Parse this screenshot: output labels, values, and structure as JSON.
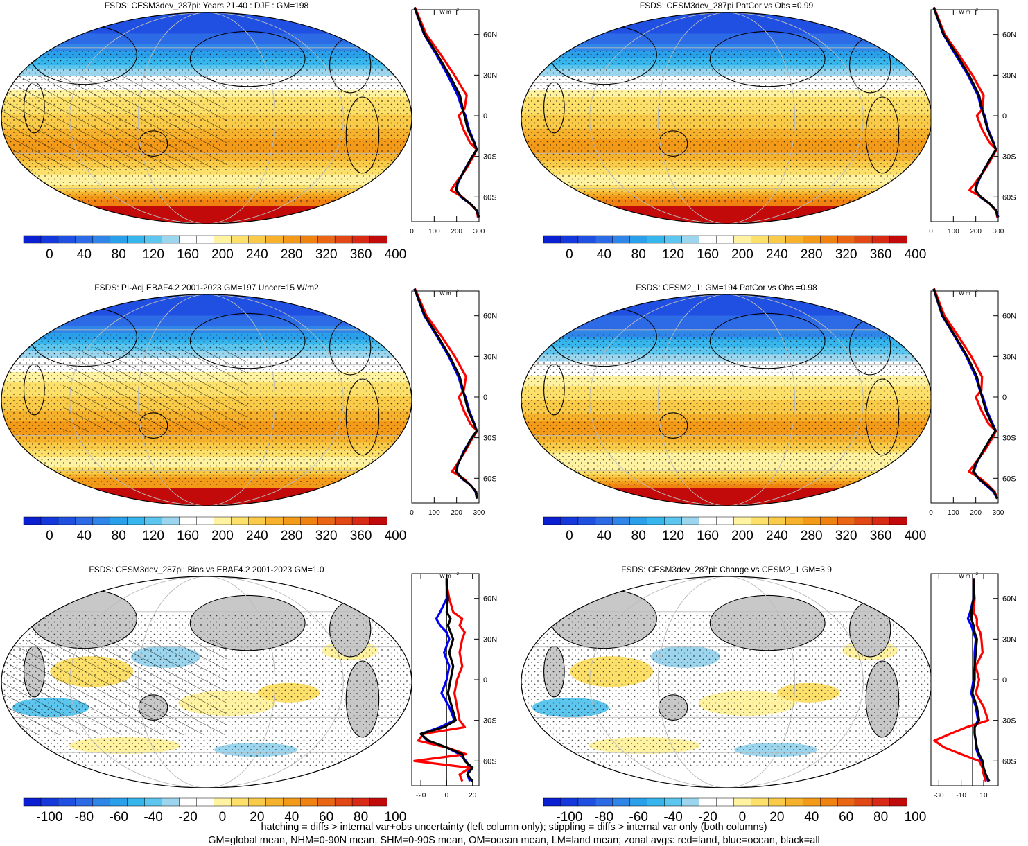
{
  "chart_data": [
    {
      "type": "heatmap",
      "title": "FSDS: CESM3dev_287pi: Years 21-40 : DJF : GM=198",
      "colorbar": {
        "type": "absolute",
        "ticks": [
          "0",
          "40",
          "80",
          "120",
          "160",
          "200",
          "240",
          "280",
          "320",
          "360",
          "400"
        ]
      },
      "zonal_profile": {
        "units": "W m-2",
        "x_ticks": [
          "0",
          "100",
          "200",
          "300"
        ],
        "y_ticks": [
          "60N",
          "30N",
          "0",
          "30S",
          "60S"
        ],
        "lat": [
          80,
          60,
          45,
          30,
          15,
          5,
          0,
          -10,
          -20,
          -25,
          -30,
          -40,
          -50,
          -55,
          -60,
          -65,
          -70,
          -75
        ],
        "series": [
          {
            "color": "#0000ff",
            "values": [
              12,
              55,
              110,
              160,
              205,
              225,
              240,
              255,
              280,
              290,
              270,
              235,
              205,
              200,
              220,
              260,
              290,
              300
            ]
          },
          {
            "color": "#ff0000",
            "values": [
              14,
              65,
              130,
              190,
              245,
              235,
              210,
              230,
              260,
              290,
              275,
              240,
              195,
              175,
              225,
              260,
              290,
              295
            ]
          },
          {
            "color": "#000000",
            "values": [
              12,
              57,
              115,
              168,
              215,
              228,
              235,
              250,
              278,
              290,
              270,
              236,
              203,
              198,
              222,
              262,
              290,
              298
            ]
          }
        ]
      }
    },
    {
      "type": "heatmap",
      "title": "FSDS: CESM3dev_287pi PatCor vs Obs =0.99",
      "colorbar": {
        "type": "absolute",
        "ticks": [
          "0",
          "40",
          "80",
          "120",
          "160",
          "200",
          "240",
          "280",
          "320",
          "360",
          "400"
        ]
      },
      "zonal_profile": {
        "units": "W m-2",
        "x_ticks": [
          "0",
          "100",
          "200",
          "300"
        ],
        "y_ticks": [
          "60N",
          "30N",
          "0",
          "30S",
          "60S"
        ],
        "lat": [
          80,
          60,
          45,
          30,
          15,
          5,
          0,
          -10,
          -20,
          -25,
          -30,
          -40,
          -50,
          -55,
          -60,
          -65,
          -70,
          -75
        ],
        "series": [
          {
            "color": "#0000ff",
            "values": [
              12,
              55,
              110,
              165,
              210,
              225,
              240,
              255,
              280,
              290,
              272,
              236,
              207,
              200,
              220,
              262,
              292,
              300
            ]
          },
          {
            "color": "#ff0000",
            "values": [
              14,
              62,
              125,
              185,
              235,
              230,
              205,
              228,
              262,
              292,
              276,
              240,
              196,
              172,
              224,
              262,
              290,
              296
            ]
          },
          {
            "color": "#000000",
            "values": [
              12,
              57,
              115,
              170,
              215,
              228,
              236,
              252,
              278,
              290,
              271,
              237,
              204,
              198,
              222,
              263,
              291,
              298
            ]
          }
        ]
      }
    },
    {
      "type": "heatmap",
      "title": "FSDS: PI-Adj EBAF4.2 2001-2023 GM=197 Uncer=15 W/m2",
      "colorbar": {
        "type": "absolute",
        "ticks": [
          "0",
          "40",
          "80",
          "120",
          "160",
          "200",
          "240",
          "280",
          "320",
          "360",
          "400"
        ]
      },
      "zonal_profile": {
        "units": "W m-2",
        "x_ticks": [
          "0",
          "100",
          "200",
          "300"
        ],
        "y_ticks": [
          "60N",
          "30N",
          "0",
          "30S",
          "60S"
        ],
        "lat": [
          80,
          60,
          45,
          30,
          15,
          5,
          0,
          -10,
          -20,
          -25,
          -30,
          -40,
          -50,
          -55,
          -60,
          -65,
          -70,
          -75
        ],
        "series": [
          {
            "color": "#0000ff",
            "values": [
              12,
              56,
              112,
              165,
              208,
              226,
              240,
              256,
              280,
              290,
              268,
              232,
              205,
              200,
              222,
              262,
              285,
              290
            ]
          },
          {
            "color": "#ff0000",
            "values": [
              14,
              66,
              132,
              192,
              242,
              232,
              210,
              232,
              262,
              292,
              272,
              238,
              200,
              180,
              230,
              262,
              288,
              292
            ]
          },
          {
            "color": "#000000",
            "values": [
              12,
              58,
              116,
              170,
              214,
              229,
              236,
              252,
              278,
              290,
              268,
              234,
              204,
              198,
              224,
              262,
              286,
              291
            ]
          }
        ]
      }
    },
    {
      "type": "heatmap",
      "title": "FSDS: CESM2_1: GM=194 PatCor vs Obs =0.98",
      "colorbar": {
        "type": "absolute",
        "ticks": [
          "0",
          "40",
          "80",
          "120",
          "160",
          "200",
          "240",
          "280",
          "320",
          "360",
          "400"
        ]
      },
      "zonal_profile": {
        "units": "W m-2",
        "x_ticks": [
          "0",
          "100",
          "200",
          "300"
        ],
        "y_ticks": [
          "60N",
          "30N",
          "0",
          "30S",
          "60S"
        ],
        "lat": [
          80,
          60,
          45,
          30,
          15,
          5,
          0,
          -10,
          -20,
          -25,
          -30,
          -40,
          -50,
          -55,
          -60,
          -65,
          -70,
          -75
        ],
        "series": [
          {
            "color": "#0000ff",
            "values": [
              12,
              50,
              105,
              158,
              200,
              218,
              232,
              250,
              276,
              290,
              270,
              232,
              200,
              192,
              210,
              245,
              280,
              295
            ]
          },
          {
            "color": "#ff0000",
            "values": [
              14,
              60,
              122,
              180,
              228,
              225,
              200,
              225,
              258,
              290,
              275,
              238,
              192,
              170,
              220,
              255,
              285,
              295
            ]
          },
          {
            "color": "#000000",
            "values": [
              12,
              52,
              108,
              162,
              205,
              220,
              228,
              245,
              272,
              288,
              268,
              232,
              198,
              188,
              212,
              248,
              282,
              296
            ]
          }
        ]
      }
    },
    {
      "type": "heatmap",
      "title": "FSDS: CESM3dev_287pi: Bias vs EBAF4.2 2001-2023 GM=1.0",
      "colorbar": {
        "type": "difference",
        "ticks": [
          "-100",
          "-80",
          "-60",
          "-40",
          "-20",
          "0",
          "20",
          "40",
          "60",
          "80",
          "100"
        ]
      },
      "zonal_profile": {
        "units": "W m-2",
        "x_ticks": [
          "-20",
          "0",
          "20"
        ],
        "y_ticks": [
          "60N",
          "30N",
          "0",
          "30S",
          "60S"
        ],
        "lat": [
          75,
          70,
          60,
          50,
          45,
          40,
          35,
          30,
          20,
          10,
          0,
          -10,
          -20,
          -30,
          -35,
          -40,
          -45,
          -50,
          -55,
          -60,
          -65,
          -70,
          -75
        ],
        "series": [
          {
            "color": "#0000ff",
            "values": [
              0,
              0,
              0,
              -5,
              -8,
              -5,
              0,
              2,
              -2,
              2,
              0,
              -4,
              2,
              6,
              -5,
              -20,
              -15,
              0,
              10,
              15,
              18,
              16,
              18
            ]
          },
          {
            "color": "#ff0000",
            "values": [
              0,
              0,
              2,
              5,
              12,
              10,
              14,
              12,
              10,
              12,
              8,
              6,
              8,
              10,
              14,
              -18,
              -22,
              0,
              15,
              -25,
              18,
              10,
              12
            ]
          },
          {
            "color": "#000000",
            "values": [
              0,
              0,
              1,
              0,
              3,
              1,
              3,
              5,
              2,
              5,
              3,
              1,
              4,
              7,
              -2,
              -20,
              -14,
              0,
              12,
              14,
              20,
              16,
              20
            ]
          }
        ]
      }
    },
    {
      "type": "heatmap",
      "title": "FSDS: CESM3dev_287pi: Change vs CESM2_1 GM=3.9",
      "colorbar": {
        "type": "difference",
        "ticks": [
          "-100",
          "-80",
          "-60",
          "-40",
          "-20",
          "0",
          "20",
          "40",
          "60",
          "80",
          "100"
        ]
      },
      "zonal_profile": {
        "units": "W m-2",
        "x_ticks": [
          "-30",
          "-10",
          "10"
        ],
        "y_ticks": [
          "60N",
          "30N",
          "0",
          "30S",
          "60S"
        ],
        "lat": [
          75,
          70,
          60,
          50,
          45,
          40,
          35,
          30,
          20,
          10,
          0,
          -10,
          -20,
          -30,
          -35,
          -40,
          -45,
          -50,
          -55,
          -60,
          -65,
          -70,
          -75
        ],
        "series": [
          {
            "color": "#0000ff",
            "values": [
              1,
              1,
              1,
              -2,
              -4,
              -1,
              1,
              3,
              2,
              2,
              1,
              -1,
              3,
              5,
              2,
              2,
              3,
              3,
              5,
              8,
              9,
              12,
              14
            ]
          },
          {
            "color": "#ff0000",
            "values": [
              1,
              1,
              2,
              1,
              4,
              4,
              7,
              8,
              9,
              3,
              6,
              3,
              10,
              14,
              -5,
              -20,
              -34,
              -25,
              -10,
              6,
              9,
              10,
              12
            ]
          },
          {
            "color": "#000000",
            "values": [
              1,
              1,
              1,
              -1,
              -1,
              1,
              2,
              4,
              3,
              2,
              2,
              0,
              4,
              6,
              2,
              2,
              3,
              4,
              6,
              9,
              10,
              12,
              15
            ]
          }
        ]
      }
    }
  ],
  "footer": {
    "line1": "hatching = diffs > internal var+obs uncertainty (left column only); stippling = diffs > internal var only (both columns)",
    "line2": "GM=global mean, NHM=0-90N mean, SHM=0-90S mean, OM=ocean mean, LM=land mean; zonal avgs: red=land, blue=ocean, black=all"
  },
  "colors": {
    "absolute_palette": [
      "#0a1ed2",
      "#1438dc",
      "#2050e2",
      "#2c6ae6",
      "#2f86e8",
      "#2aa0ea",
      "#36b6ec",
      "#5cc6ee",
      "#9cd6ee",
      "#ffffff",
      "#ffffff",
      "#fff2a0",
      "#fce06a",
      "#f9cb48",
      "#f6b22c",
      "#f39b18",
      "#f08212",
      "#ea6614",
      "#e24816",
      "#d82a14",
      "#c20a0a"
    ],
    "land_mask": "#c8c8c8"
  }
}
